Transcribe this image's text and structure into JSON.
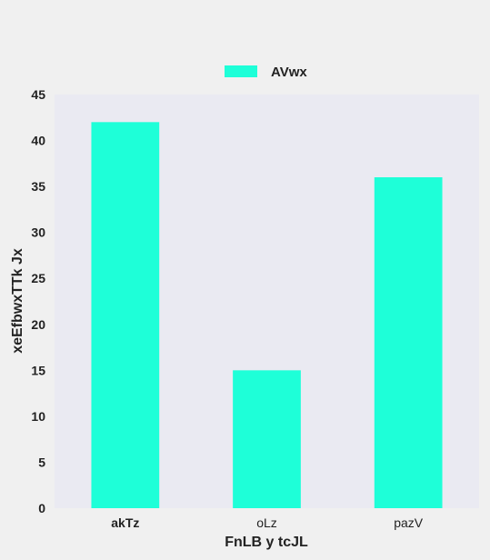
{
  "chart_data": {
    "type": "bar",
    "categories": [
      "akTz",
      "oLz",
      "pazV"
    ],
    "series": [
      {
        "name": "AVwx",
        "values": [
          42,
          15,
          36
        ],
        "color": "#1effd8"
      }
    ],
    "xlabel": "FnLB y tcJL",
    "ylabel": "xeEfbwxTTk Jx",
    "ylim": [
      0,
      45
    ],
    "yticks": [
      0,
      5,
      10,
      15,
      20,
      25,
      30,
      35,
      40,
      45
    ],
    "grid": false,
    "legend_position": "top-center",
    "plot_background": "#eaeaf2"
  }
}
